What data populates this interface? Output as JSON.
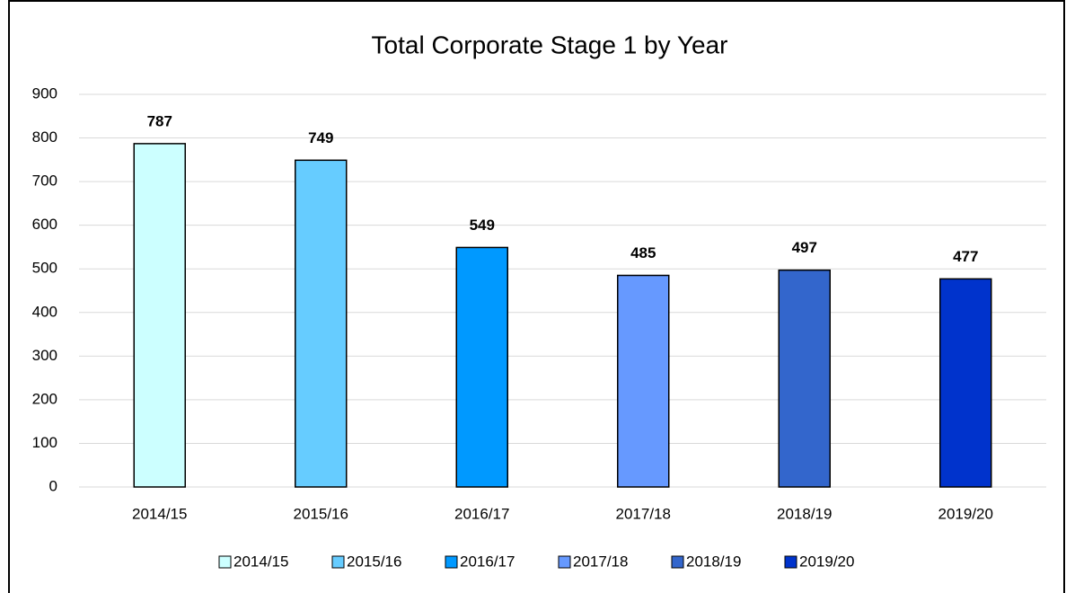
{
  "chart_data": {
    "type": "bar",
    "title": "Total Corporate Stage 1 by Year",
    "categories": [
      "2014/15",
      "2015/16",
      "2016/17",
      "2017/18",
      "2018/19",
      "2019/20"
    ],
    "values": [
      787,
      749,
      549,
      485,
      497,
      477
    ],
    "colors": [
      "#ccffff",
      "#66ccff",
      "#0099ff",
      "#6699ff",
      "#3366cc",
      "#0033cc"
    ],
    "ylim": [
      0,
      900
    ],
    "yticks": [
      0,
      100,
      200,
      300,
      400,
      500,
      600,
      700,
      800,
      900
    ],
    "grid": true,
    "legend": "bottom"
  }
}
